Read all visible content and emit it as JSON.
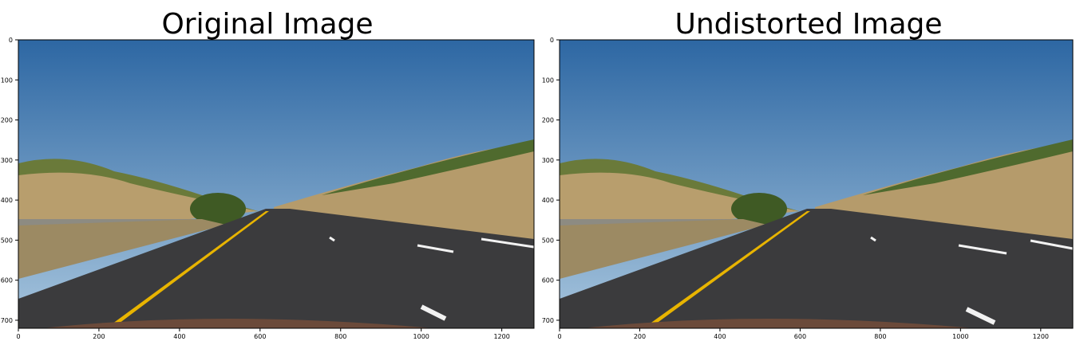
{
  "panels": [
    {
      "title": "Original Image",
      "x_ticks": [
        "0",
        "200",
        "400",
        "600",
        "800",
        "1000",
        "1200"
      ],
      "y_ticks": [
        "0",
        "100",
        "200",
        "300",
        "400",
        "500",
        "600",
        "700"
      ]
    },
    {
      "title": "Undistorted Image",
      "x_ticks": [
        "0",
        "200",
        "400",
        "600",
        "800",
        "1000",
        "1200"
      ],
      "y_ticks": [
        "0",
        "100",
        "200",
        "300",
        "400",
        "500",
        "600",
        "700"
      ]
    }
  ],
  "image_extent": {
    "width": 1280,
    "height": 720
  },
  "colors": {
    "sky_top": "#2f6aa6",
    "sky_bottom": "#a9c7de",
    "hill": "#b59b6b",
    "road": "#3b3b3d",
    "lane_yellow": "#e8b400",
    "lane_white": "#f2f2f2",
    "hood": "#6b4a3a"
  }
}
